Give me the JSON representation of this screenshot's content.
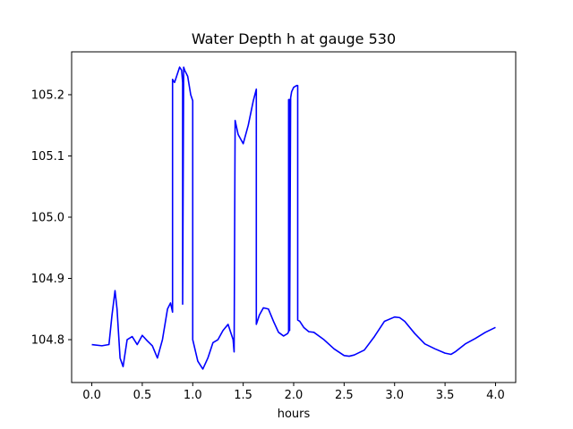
{
  "chart_data": {
    "type": "line",
    "title": "Water Depth h at gauge 530",
    "xlabel": "hours",
    "ylabel": "",
    "xlim": [
      -0.2,
      4.2
    ],
    "ylim": [
      104.73,
      105.27
    ],
    "x_ticks": [
      0.0,
      0.5,
      1.0,
      1.5,
      2.0,
      2.5,
      3.0,
      3.5,
      4.0
    ],
    "x_tick_labels": [
      "0.0",
      "0.5",
      "1.0",
      "1.5",
      "2.0",
      "2.5",
      "3.0",
      "3.5",
      "4.0"
    ],
    "y_ticks": [
      104.8,
      104.9,
      105.0,
      105.1,
      105.2
    ],
    "y_tick_labels": [
      "104.8",
      "104.9",
      "105.0",
      "105.1",
      "105.2"
    ],
    "grid": false,
    "legend": "none",
    "series": [
      {
        "color": "#0000ff",
        "x": [
          0.0,
          0.1,
          0.17,
          0.2,
          0.23,
          0.25,
          0.28,
          0.31,
          0.35,
          0.4,
          0.45,
          0.5,
          0.55,
          0.6,
          0.65,
          0.7,
          0.75,
          0.78,
          0.8,
          0.8,
          0.82,
          0.84,
          0.87,
          0.89,
          0.9,
          0.9,
          0.91,
          0.92,
          0.92,
          0.95,
          0.98,
          1.0,
          1.0,
          1.05,
          1.1,
          1.15,
          1.2,
          1.25,
          1.3,
          1.35,
          1.4,
          1.41,
          1.42,
          1.45,
          1.5,
          1.55,
          1.6,
          1.63,
          1.63,
          1.66,
          1.7,
          1.75,
          1.8,
          1.85,
          1.9,
          1.94,
          1.95,
          1.95,
          1.96,
          1.96,
          1.97,
          1.98,
          2.0,
          2.03,
          2.04,
          2.04,
          2.06,
          2.1,
          2.15,
          2.2,
          2.3,
          2.4,
          2.5,
          2.55,
          2.6,
          2.7,
          2.8,
          2.9,
          3.0,
          3.05,
          3.1,
          3.2,
          3.3,
          3.4,
          3.5,
          3.56,
          3.6,
          3.7,
          3.8,
          3.9,
          4.0
        ],
        "values": [
          104.792,
          104.79,
          104.792,
          104.84,
          104.88,
          104.85,
          104.77,
          104.756,
          104.8,
          104.805,
          104.792,
          104.807,
          104.798,
          104.79,
          104.77,
          104.8,
          104.85,
          104.86,
          104.845,
          105.225,
          105.22,
          105.23,
          105.245,
          105.24,
          105.22,
          104.858,
          105.245,
          105.24,
          105.24,
          105.23,
          105.2,
          105.19,
          104.8,
          104.765,
          104.752,
          104.77,
          104.795,
          104.8,
          104.815,
          104.825,
          104.8,
          104.78,
          105.158,
          105.135,
          105.12,
          105.15,
          105.19,
          105.209,
          104.825,
          104.84,
          104.852,
          104.85,
          104.83,
          104.812,
          104.806,
          104.81,
          104.813,
          105.192,
          105.192,
          104.815,
          105.195,
          105.205,
          105.212,
          105.215,
          105.215,
          104.832,
          104.83,
          104.82,
          104.813,
          104.812,
          104.8,
          104.785,
          104.774,
          104.773,
          104.775,
          104.783,
          104.805,
          104.83,
          104.837,
          104.836,
          104.83,
          104.81,
          104.793,
          104.785,
          104.778,
          104.776,
          104.78,
          104.793,
          104.802,
          104.812,
          104.82
        ]
      }
    ]
  }
}
